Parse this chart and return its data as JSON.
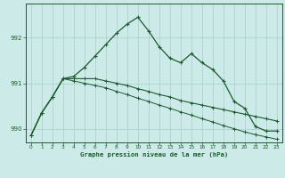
{
  "title": "Graphe pression niveau de la mer (hPa)",
  "bg_color": "#cceae7",
  "grid_color": "#aad4d0",
  "line_color": "#1a5c2a",
  "x_ticks": [
    0,
    1,
    2,
    3,
    4,
    5,
    6,
    7,
    8,
    9,
    10,
    11,
    12,
    13,
    14,
    15,
    16,
    17,
    18,
    19,
    20,
    21,
    22,
    23
  ],
  "main_line": [
    989.85,
    990.35,
    990.7,
    991.1,
    991.15,
    991.35,
    991.6,
    991.85,
    992.1,
    992.3,
    992.45,
    992.15,
    991.8,
    991.55,
    991.45,
    991.65,
    991.45,
    991.3,
    991.05,
    990.6,
    990.45,
    990.05,
    989.95,
    989.95
  ],
  "line2": [
    989.85,
    990.35,
    990.7,
    991.1,
    991.1,
    991.1,
    991.1,
    991.05,
    991.0,
    990.95,
    990.88,
    990.82,
    990.75,
    990.7,
    990.62,
    990.57,
    990.52,
    990.47,
    990.42,
    990.37,
    990.32,
    990.27,
    990.22,
    990.17
  ],
  "line3": [
    989.85,
    990.35,
    990.7,
    991.1,
    991.05,
    991.0,
    990.95,
    990.9,
    990.82,
    990.75,
    990.67,
    990.6,
    990.52,
    990.45,
    990.37,
    990.3,
    990.22,
    990.15,
    990.07,
    990.0,
    989.93,
    989.87,
    989.82,
    989.77
  ],
  "ylim": [
    989.7,
    992.75
  ],
  "yticks": [
    990,
    991,
    992
  ],
  "figsize": [
    3.2,
    2.0
  ],
  "dpi": 100
}
